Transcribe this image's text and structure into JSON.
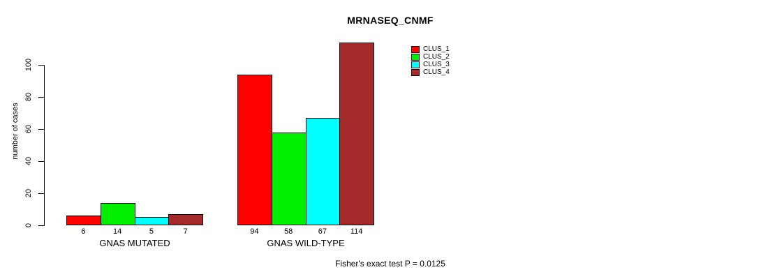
{
  "title": "MRNASEQ_CNMF",
  "ylabel": "number of cases",
  "footnote": "Fisher's exact test P = 0.0125",
  "chart_data": {
    "type": "bar",
    "title": "MRNASEQ_CNMF",
    "xlabel": "",
    "ylabel": "number of cases",
    "categories": [
      "GNAS MUTATED",
      "GNAS WILD-TYPE"
    ],
    "series": [
      {
        "name": "CLUS_1",
        "color": "#FF0000",
        "values": [
          6,
          94
        ]
      },
      {
        "name": "CLUS_2",
        "color": "#00EE00",
        "values": [
          14,
          58
        ]
      },
      {
        "name": "CLUS_3",
        "color": "#00FFFF",
        "values": [
          5,
          67
        ]
      },
      {
        "name": "CLUS_4",
        "color": "#A52A2A",
        "values": [
          7,
          114
        ]
      }
    ],
    "yticks": [
      0,
      20,
      40,
      60,
      80,
      100
    ],
    "ylim": [
      0,
      115
    ],
    "grid": false,
    "show_value_labels": true,
    "legend_position": "topright",
    "legend_entries": [
      "CLUS_1",
      "CLUS_2",
      "CLUS_3",
      "CLUS_4"
    ],
    "bar_border_color": "#000000",
    "annotation": "Fisher's exact test P = 0.0125"
  }
}
